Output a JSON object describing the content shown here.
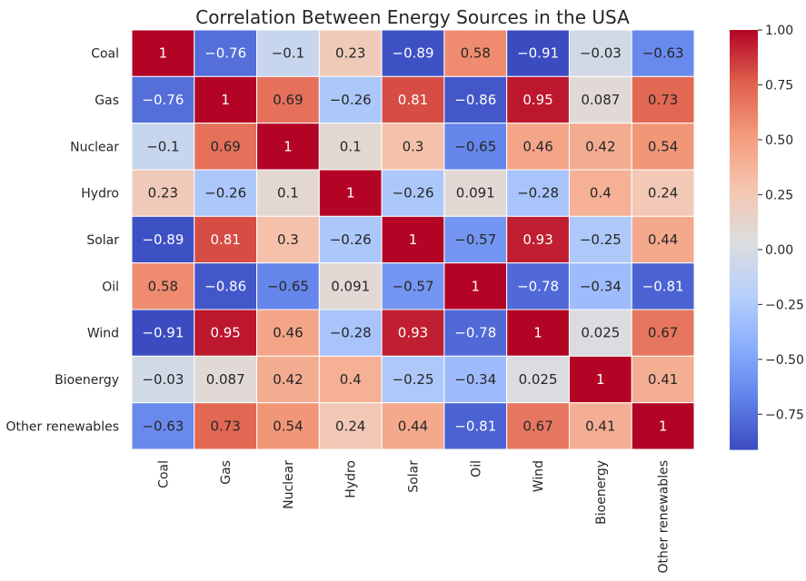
{
  "chart_data": {
    "type": "heatmap",
    "title": "Correlation Between Energy Sources in the USA",
    "xlabel": "",
    "ylabel": "",
    "row_labels": [
      "Coal",
      "Gas",
      "Nuclear",
      "Hydro",
      "Solar",
      "Oil",
      "Wind",
      "Bioenergy",
      "Other renewables"
    ],
    "col_labels": [
      "Coal",
      "Gas",
      "Nuclear",
      "Hydro",
      "Solar",
      "Oil",
      "Wind",
      "Bioenergy",
      "Other renewables"
    ],
    "values": [
      [
        1,
        -0.76,
        -0.1,
        0.23,
        -0.89,
        0.58,
        -0.91,
        -0.03,
        -0.63
      ],
      [
        -0.76,
        1,
        0.69,
        -0.26,
        0.81,
        -0.86,
        0.95,
        0.087,
        0.73
      ],
      [
        -0.1,
        0.69,
        1,
        0.1,
        0.3,
        -0.65,
        0.46,
        0.42,
        0.54
      ],
      [
        0.23,
        -0.26,
        0.1,
        1,
        -0.26,
        0.091,
        -0.28,
        0.4,
        0.24
      ],
      [
        -0.89,
        0.81,
        0.3,
        -0.26,
        1,
        -0.57,
        0.93,
        -0.25,
        0.44
      ],
      [
        0.58,
        -0.86,
        -0.65,
        0.091,
        -0.57,
        1,
        -0.78,
        -0.34,
        -0.81
      ],
      [
        -0.91,
        0.95,
        0.46,
        -0.28,
        0.93,
        -0.78,
        1,
        0.025,
        0.67
      ],
      [
        -0.03,
        0.087,
        0.42,
        0.4,
        -0.25,
        -0.34,
        0.025,
        1,
        0.41
      ],
      [
        -0.63,
        0.73,
        0.54,
        0.24,
        0.44,
        -0.81,
        0.67,
        0.41,
        1
      ]
    ],
    "annotations": true,
    "colormap": "coolwarm",
    "vmin": -0.91,
    "vmax": 1.0,
    "colorbar": {
      "ticks": [
        1.0,
        0.75,
        0.5,
        0.25,
        0.0,
        -0.25,
        -0.5,
        -0.75
      ],
      "tick_labels": [
        "1.00",
        "0.75",
        "0.50",
        "0.25",
        "0.00",
        "−0.25",
        "−0.50",
        "−0.75"
      ]
    },
    "grid": false,
    "x_tick_rotation": "vertical",
    "legend_placement": "right"
  }
}
